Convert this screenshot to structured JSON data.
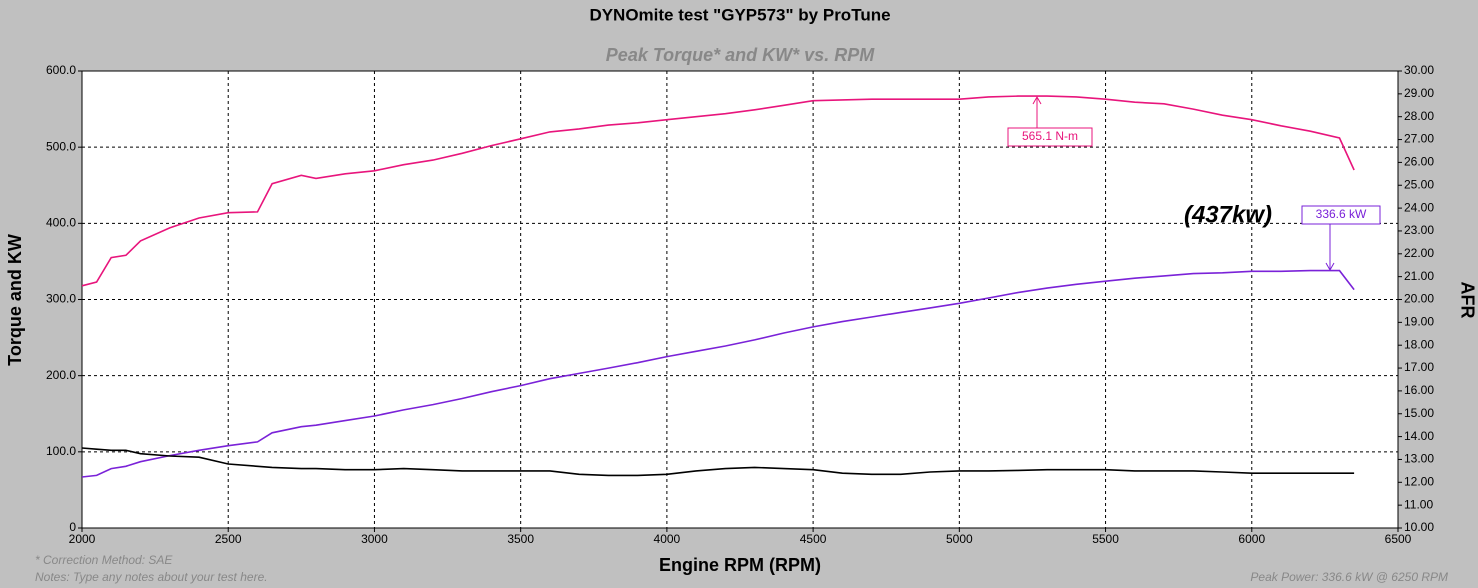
{
  "chart_data": {
    "type": "line",
    "title": "DYNOmite test \"GYP573\" by ProTune",
    "subtitle": "Peak Torque* and KW* vs. RPM",
    "xlabel": "Engine RPM (RPM)",
    "ylabel": "Torque and KW",
    "y2label": "AFR",
    "notes": [
      "* Correction Method: SAE",
      "Notes: Type any notes about your test here."
    ],
    "summary": "Peak Power: 336.6 kW @ 6250 RPM",
    "grid": true,
    "x": [
      2000,
      2050,
      2100,
      2150,
      2200,
      2300,
      2400,
      2500,
      2600,
      2650,
      2750,
      2800,
      2900,
      3000,
      3100,
      3200,
      3300,
      3400,
      3500,
      3600,
      3700,
      3800,
      3900,
      4000,
      4100,
      4200,
      4300,
      4400,
      4500,
      4600,
      4700,
      4800,
      4900,
      5000,
      5100,
      5200,
      5300,
      5400,
      5500,
      5600,
      5700,
      5800,
      5900,
      6000,
      6100,
      6200,
      6300,
      6350
    ],
    "series": [
      {
        "name": "Torque",
        "color": "#e8157c",
        "values": [
          318,
          323,
          355,
          358,
          377,
          394,
          407,
          414,
          415,
          452,
          463,
          459,
          465,
          469,
          477,
          483,
          492,
          502,
          511,
          520,
          524,
          529,
          532,
          536,
          540,
          544,
          549,
          555,
          561,
          562,
          563,
          563,
          563,
          563,
          566,
          567,
          567,
          566,
          563,
          559,
          557,
          550,
          542,
          536,
          528,
          521,
          512,
          470
        ]
      },
      {
        "name": "Power",
        "color": "#7a22d8",
        "values": [
          67,
          69,
          78,
          81,
          87,
          95,
          102,
          108,
          113,
          125,
          133,
          135,
          141,
          147,
          155,
          162,
          170,
          179,
          187,
          196,
          203,
          210,
          217,
          225,
          232,
          239,
          247,
          256,
          264,
          271,
          277,
          283,
          289,
          295,
          302,
          309,
          315,
          320,
          324,
          328,
          331,
          334,
          335,
          337,
          337,
          338,
          338,
          313
        ]
      },
      {
        "name": "AFR",
        "color": "#000000",
        "axis": "y2",
        "values": [
          13.5,
          13.45,
          13.4,
          13.4,
          13.25,
          13.15,
          13.1,
          12.8,
          12.7,
          12.65,
          12.6,
          12.6,
          12.55,
          12.55,
          12.6,
          12.55,
          12.5,
          12.5,
          12.5,
          12.5,
          12.35,
          12.3,
          12.3,
          12.35,
          12.5,
          12.6,
          12.65,
          12.6,
          12.55,
          12.4,
          12.35,
          12.35,
          12.45,
          12.5,
          12.5,
          12.52,
          12.55,
          12.55,
          12.55,
          12.5,
          12.5,
          12.5,
          12.45,
          12.4,
          12.4,
          12.4,
          12.4,
          12.4
        ]
      }
    ],
    "annotations": [
      "565.1 N-m",
      "336.6 kW",
      "(437kw)"
    ],
    "xlim": [
      2000,
      6500
    ],
    "xticks": [
      2000,
      2500,
      3000,
      3500,
      4000,
      4500,
      5000,
      5500,
      6000,
      6500
    ],
    "ylim": [
      0,
      600
    ],
    "yticks": [
      0,
      {
        "value": 100,
        "label": "100.0"
      },
      {
        "value": 200,
        "label": "200.0"
      },
      {
        "value": 300,
        "label": "300.0"
      },
      {
        "value": 400,
        "label": "400.0"
      },
      {
        "value": 500,
        "label": "500.0"
      },
      {
        "value": 600,
        "label": "600.0"
      }
    ],
    "y2lim": [
      10,
      30
    ],
    "y2ticks": [
      {
        "value": 10,
        "label": "10.00"
      },
      {
        "value": 11,
        "label": "11.00"
      },
      {
        "value": 12,
        "label": "12.00"
      },
      {
        "value": 13,
        "label": "13.00"
      },
      {
        "value": 14,
        "label": "14.00"
      },
      {
        "value": 15,
        "label": "15.00"
      },
      {
        "value": 16,
        "label": "16.00"
      },
      {
        "value": 17,
        "label": "17.00"
      },
      {
        "value": 18,
        "label": "18.00"
      },
      {
        "value": 19,
        "label": "19.00"
      },
      {
        "value": 20,
        "label": "20.00"
      },
      {
        "value": 21,
        "label": "21.00"
      },
      {
        "value": 22,
        "label": "22.00"
      },
      {
        "value": 23,
        "label": "23.00"
      },
      {
        "value": 24,
        "label": "24.00"
      },
      {
        "value": 25,
        "label": "25.00"
      },
      {
        "value": 26,
        "label": "26.00"
      },
      {
        "value": 27,
        "label": "27.00"
      },
      {
        "value": 28,
        "label": "28.00"
      },
      {
        "value": 29,
        "label": "29.00"
      },
      {
        "value": 30,
        "label": "30.00"
      }
    ]
  }
}
